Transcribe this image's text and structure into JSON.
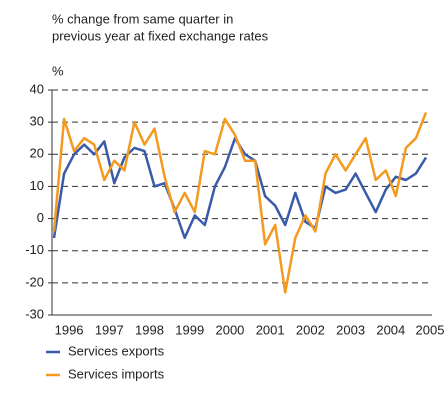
{
  "chart_data": {
    "type": "line",
    "subtitle": [
      "% change from same quarter in",
      "previous year at fixed exchange rates"
    ],
    "y_label": "%",
    "categories": [
      "1996",
      null,
      null,
      null,
      "1997",
      null,
      null,
      null,
      "1998",
      null,
      null,
      null,
      "1999",
      null,
      null,
      null,
      "2000",
      null,
      null,
      null,
      "2001",
      null,
      null,
      null,
      "2002",
      null,
      null,
      null,
      "2003",
      null,
      null,
      null,
      "2004",
      null,
      null,
      null,
      "2005",
      null
    ],
    "series": [
      {
        "name": "Services exports",
        "color": "#3a5ba9",
        "values": [
          -6,
          14,
          20,
          23,
          20,
          24,
          11,
          19,
          22,
          21,
          10,
          11,
          3,
          -6,
          1,
          -2,
          10,
          16,
          25,
          20,
          18,
          7,
          4,
          -2,
          8,
          -1,
          -3,
          10,
          8,
          9,
          14,
          8,
          2,
          9,
          13,
          12,
          14,
          19
        ]
      },
      {
        "name": "Services imports",
        "color": "#f39a1f",
        "values": [
          -4,
          31,
          21,
          25,
          23,
          12,
          18,
          15,
          30,
          23,
          28,
          13,
          2,
          8,
          2,
          21,
          20,
          31,
          26,
          18,
          18,
          -8,
          -2,
          -23,
          -6,
          1,
          -4,
          14,
          20,
          15,
          20,
          25,
          12,
          15,
          7,
          22,
          25,
          33
        ]
      }
    ],
    "ylim": [
      -30,
      40
    ],
    "yticks": [
      -30,
      -20,
      -10,
      0,
      10,
      20,
      30,
      40
    ],
    "grid": true
  }
}
